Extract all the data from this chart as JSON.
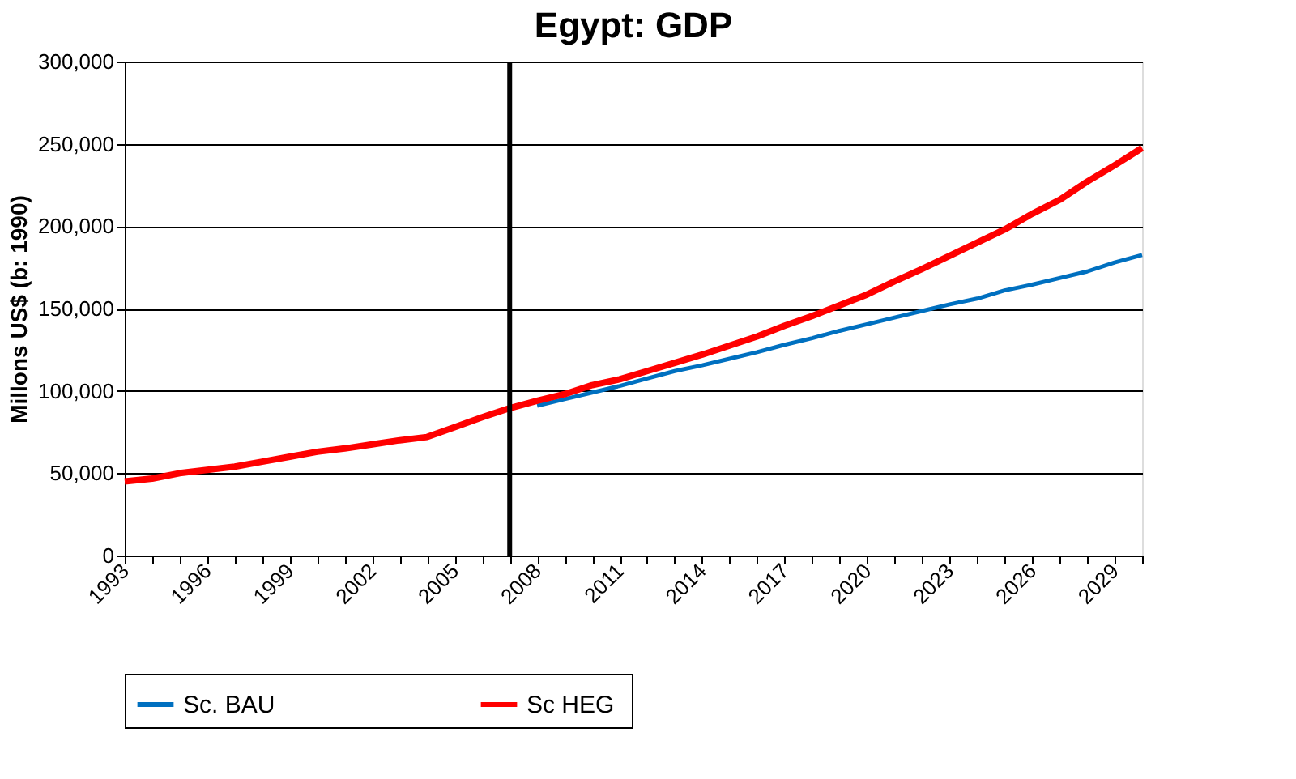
{
  "chart_data": {
    "type": "line",
    "title": "Egypt: GDP",
    "ylabel": "Millons US$ (b: 1990)",
    "x": [
      1993,
      1994,
      1995,
      1996,
      1997,
      1998,
      1999,
      2000,
      2001,
      2002,
      2003,
      2004,
      2005,
      2006,
      2007,
      2008,
      2009,
      2010,
      2011,
      2012,
      2013,
      2014,
      2015,
      2016,
      2017,
      2018,
      2019,
      2020,
      2021,
      2022,
      2023,
      2024,
      2025,
      2026,
      2027,
      2028,
      2029,
      2030
    ],
    "series": [
      {
        "name": "Sc. BAU",
        "color": "#0070c0",
        "values": [
          null,
          null,
          null,
          null,
          null,
          null,
          null,
          null,
          null,
          null,
          null,
          null,
          null,
          null,
          null,
          91000,
          95000,
          99000,
          103000,
          107500,
          112000,
          115500,
          119500,
          123500,
          128000,
          132000,
          136500,
          140500,
          144500,
          148500,
          152500,
          156000,
          161000,
          164500,
          168500,
          172500,
          178000,
          182500
        ]
      },
      {
        "name": "Sc  HEG",
        "color": "#ff0000",
        "values": [
          45000,
          46700,
          50000,
          52000,
          54000,
          57000,
          60000,
          63000,
          65000,
          67500,
          70000,
          72000,
          78000,
          84000,
          89500,
          94000,
          98000,
          103500,
          107000,
          112000,
          117000,
          122000,
          127500,
          133000,
          139500,
          145500,
          152000,
          158500,
          166500,
          174000,
          182000,
          190000,
          198000,
          207500,
          216000,
          227000,
          237000,
          247500
        ]
      }
    ],
    "xlim": [
      1993,
      2030
    ],
    "xticks": [
      1993,
      {
        "value": 1994,
        "label": null
      },
      {
        "value": 1995,
        "label": null
      },
      1996,
      {
        "value": 1997,
        "label": null
      },
      {
        "value": 1998,
        "label": null
      },
      1999,
      {
        "value": 2000,
        "label": null
      },
      {
        "value": 2001,
        "label": null
      },
      2002,
      {
        "value": 2003,
        "label": null
      },
      {
        "value": 2004,
        "label": null
      },
      2005,
      {
        "value": 2006,
        "label": null
      },
      {
        "value": 2007,
        "label": null
      },
      2008,
      {
        "value": 2009,
        "label": null
      },
      {
        "value": 2010,
        "label": null
      },
      2011,
      {
        "value": 2012,
        "label": null
      },
      {
        "value": 2013,
        "label": null
      },
      2014,
      {
        "value": 2015,
        "label": null
      },
      {
        "value": 2016,
        "label": null
      },
      2017,
      {
        "value": 2018,
        "label": null
      },
      {
        "value": 2019,
        "label": null
      },
      2020,
      {
        "value": 2021,
        "label": null
      },
      {
        "value": 2022,
        "label": null
      },
      2023,
      {
        "value": 2024,
        "label": null
      },
      {
        "value": 2025,
        "label": null
      },
      2026,
      {
        "value": 2027,
        "label": null
      },
      {
        "value": 2028,
        "label": null
      },
      2029,
      {
        "value": 2030,
        "label": null
      }
    ],
    "ylim": [
      0,
      300000
    ],
    "yticks": [
      {
        "value": 0,
        "label": "0"
      },
      {
        "value": 50000,
        "label": "50,000"
      },
      {
        "value": 100000,
        "label": "100,000"
      },
      {
        "value": 150000,
        "label": "150,000"
      },
      {
        "value": 200000,
        "label": "200,000"
      },
      {
        "value": 250000,
        "label": "250,000"
      },
      {
        "value": 300000,
        "label": "300,000"
      }
    ],
    "ref_lines": [
      {
        "axis": "x",
        "value": 2007,
        "color": "#000000"
      }
    ],
    "grid": "y",
    "legend": "bottom",
    "marker": "none",
    "line_style": "solid"
  }
}
